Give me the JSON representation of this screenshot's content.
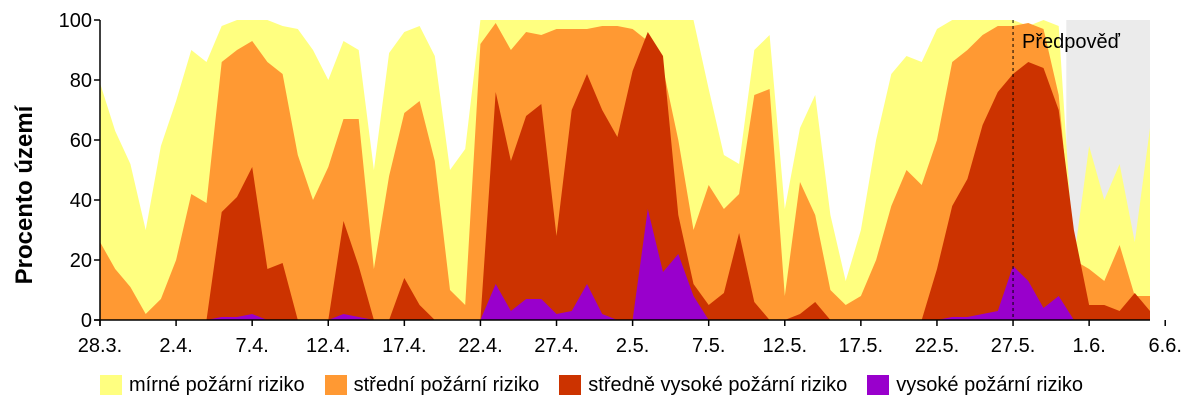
{
  "chart_data": {
    "type": "area",
    "stacked": false,
    "ylabel": "Procento území",
    "ylim": [
      0,
      100
    ],
    "yticks": [
      0,
      20,
      40,
      60,
      80,
      100
    ],
    "x_tick_labels": [
      "28.3.",
      "2.4.",
      "7.4.",
      "12.4.",
      "17.4.",
      "22.4.",
      "27.4.",
      "2.5.",
      "7.5.",
      "12.5.",
      "17.5.",
      "22.5.",
      "27.5.",
      "1.6.",
      "6.6."
    ],
    "x_tick_days": [
      0,
      5,
      10,
      15,
      20,
      25,
      30,
      35,
      40,
      45,
      50,
      55,
      60,
      65,
      70
    ],
    "forecast": {
      "label": "Předpověď",
      "start_day": 60,
      "shade_start_day": 63.5,
      "end_day": 70,
      "shade_color": "#ebebeb"
    },
    "series": [
      {
        "name": "mírné požární riziko",
        "color": "#ffff80",
        "values": [
          79,
          63,
          52,
          30,
          58,
          73,
          90,
          86,
          98,
          100,
          100,
          100,
          98,
          97,
          90,
          80,
          93,
          90,
          50,
          89,
          96,
          98,
          88,
          50,
          57,
          100,
          100,
          100,
          100,
          100,
          100,
          100,
          100,
          100,
          100,
          100,
          100,
          100,
          100,
          100,
          77,
          55,
          52,
          90,
          95,
          37,
          64,
          75,
          35,
          13,
          30,
          60,
          82,
          88,
          86,
          97,
          100,
          100,
          100,
          100,
          100,
          98,
          100,
          98,
          20,
          58,
          40,
          52,
          26,
          64
        ]
      },
      {
        "name": "střední požární riziko",
        "color": "#ff9933",
        "values": [
          26,
          17,
          11,
          2,
          7,
          20,
          42,
          39,
          86,
          90,
          93,
          86,
          82,
          55,
          40,
          51,
          67,
          67,
          17,
          48,
          69,
          73,
          53,
          10,
          5,
          92,
          99,
          90,
          96,
          95,
          97,
          97,
          97,
          98,
          98,
          97,
          93,
          84,
          60,
          30,
          45,
          37,
          42,
          75,
          77,
          8,
          46,
          35,
          10,
          5,
          8,
          20,
          38,
          50,
          45,
          60,
          86,
          90,
          95,
          98,
          98,
          99,
          97,
          75,
          20,
          17,
          13,
          25,
          8,
          8
        ]
      },
      {
        "name": "středně vysoké požární riziko",
        "color": "#cc3300",
        "values": [
          0,
          0,
          0,
          0,
          0,
          0,
          0,
          0,
          36,
          41,
          51,
          17,
          19,
          0,
          0,
          0,
          33,
          18,
          0,
          0,
          14,
          5,
          0,
          0,
          0,
          0,
          76,
          53,
          68,
          72,
          28,
          70,
          82,
          70,
          61,
          83,
          96,
          88,
          35,
          12,
          5,
          9,
          29,
          6,
          0,
          0,
          2,
          6,
          0,
          0,
          0,
          0,
          0,
          0,
          0,
          17,
          38,
          47,
          65,
          76,
          82,
          86,
          84,
          70,
          30,
          5,
          5,
          3,
          9,
          3
        ]
      },
      {
        "name": "vysoké požární riziko",
        "color": "#9900cc",
        "values": [
          0,
          0,
          0,
          0,
          0,
          0,
          0,
          0,
          1,
          1,
          2,
          0,
          0,
          0,
          0,
          0,
          2,
          1,
          0,
          0,
          0,
          0,
          0,
          0,
          0,
          0,
          12,
          3,
          7,
          7,
          2,
          3,
          12,
          2,
          0,
          0,
          37,
          16,
          22,
          8,
          0,
          0,
          0,
          0,
          0,
          0,
          0,
          0,
          0,
          0,
          0,
          0,
          0,
          0,
          0,
          0,
          1,
          1,
          2,
          3,
          18,
          13,
          4,
          8,
          0,
          0,
          0,
          0,
          0,
          0
        ]
      }
    ]
  }
}
